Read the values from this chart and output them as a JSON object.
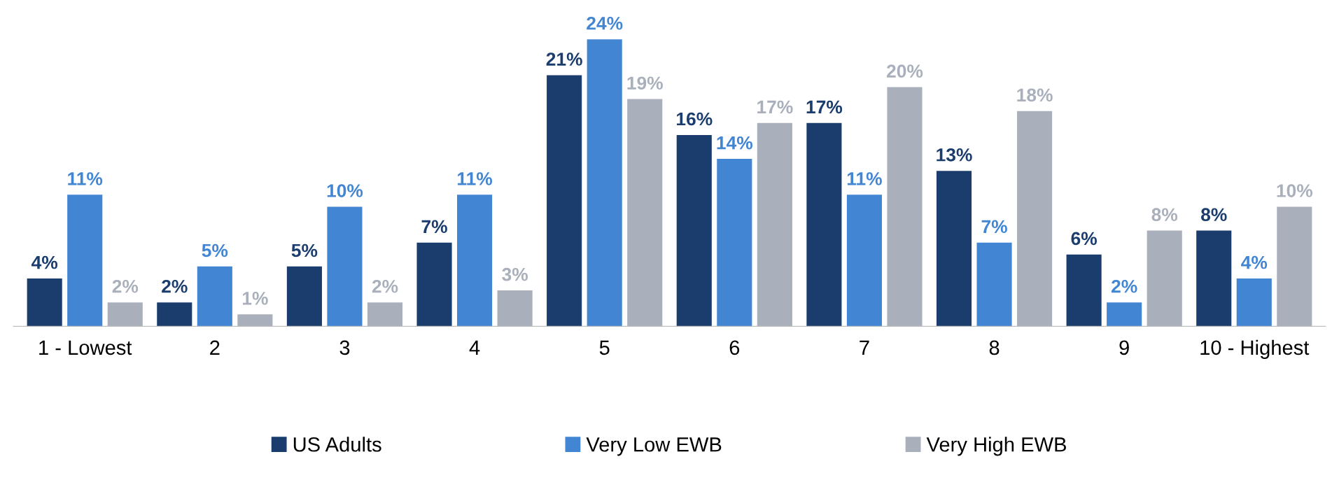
{
  "chart_data": {
    "type": "bar",
    "categories": [
      "1 - Lowest",
      "2",
      "3",
      "4",
      "5",
      "6",
      "7",
      "8",
      "9",
      "10 - Highest"
    ],
    "series": [
      {
        "name": "US Adults",
        "color": "#1a3d6d",
        "values": [
          4,
          2,
          5,
          7,
          21,
          16,
          17,
          13,
          6,
          8
        ],
        "value_labels": [
          "4%",
          "2%",
          "5%",
          "7%",
          "21%",
          "16%",
          "17%",
          "13%",
          "6%",
          "8%"
        ]
      },
      {
        "name": "Very Low EWB",
        "color": "#4286d3",
        "values": [
          11,
          5,
          10,
          11,
          24,
          14,
          11,
          7,
          2,
          4
        ],
        "value_labels": [
          "11%",
          "5%",
          "10%",
          "11%",
          "24%",
          "14%",
          "11%",
          "7%",
          "2%",
          "4%"
        ]
      },
      {
        "name": "Very High EWB",
        "color": "#a9b0bb",
        "values": [
          2,
          1,
          2,
          3,
          19,
          17,
          20,
          18,
          8,
          10
        ],
        "value_labels": [
          "2%",
          "1%",
          "2%",
          "3%",
          "19%",
          "17%",
          "20%",
          "18%",
          "8%",
          "10%"
        ]
      }
    ],
    "grid": false,
    "legend": "bottom"
  }
}
